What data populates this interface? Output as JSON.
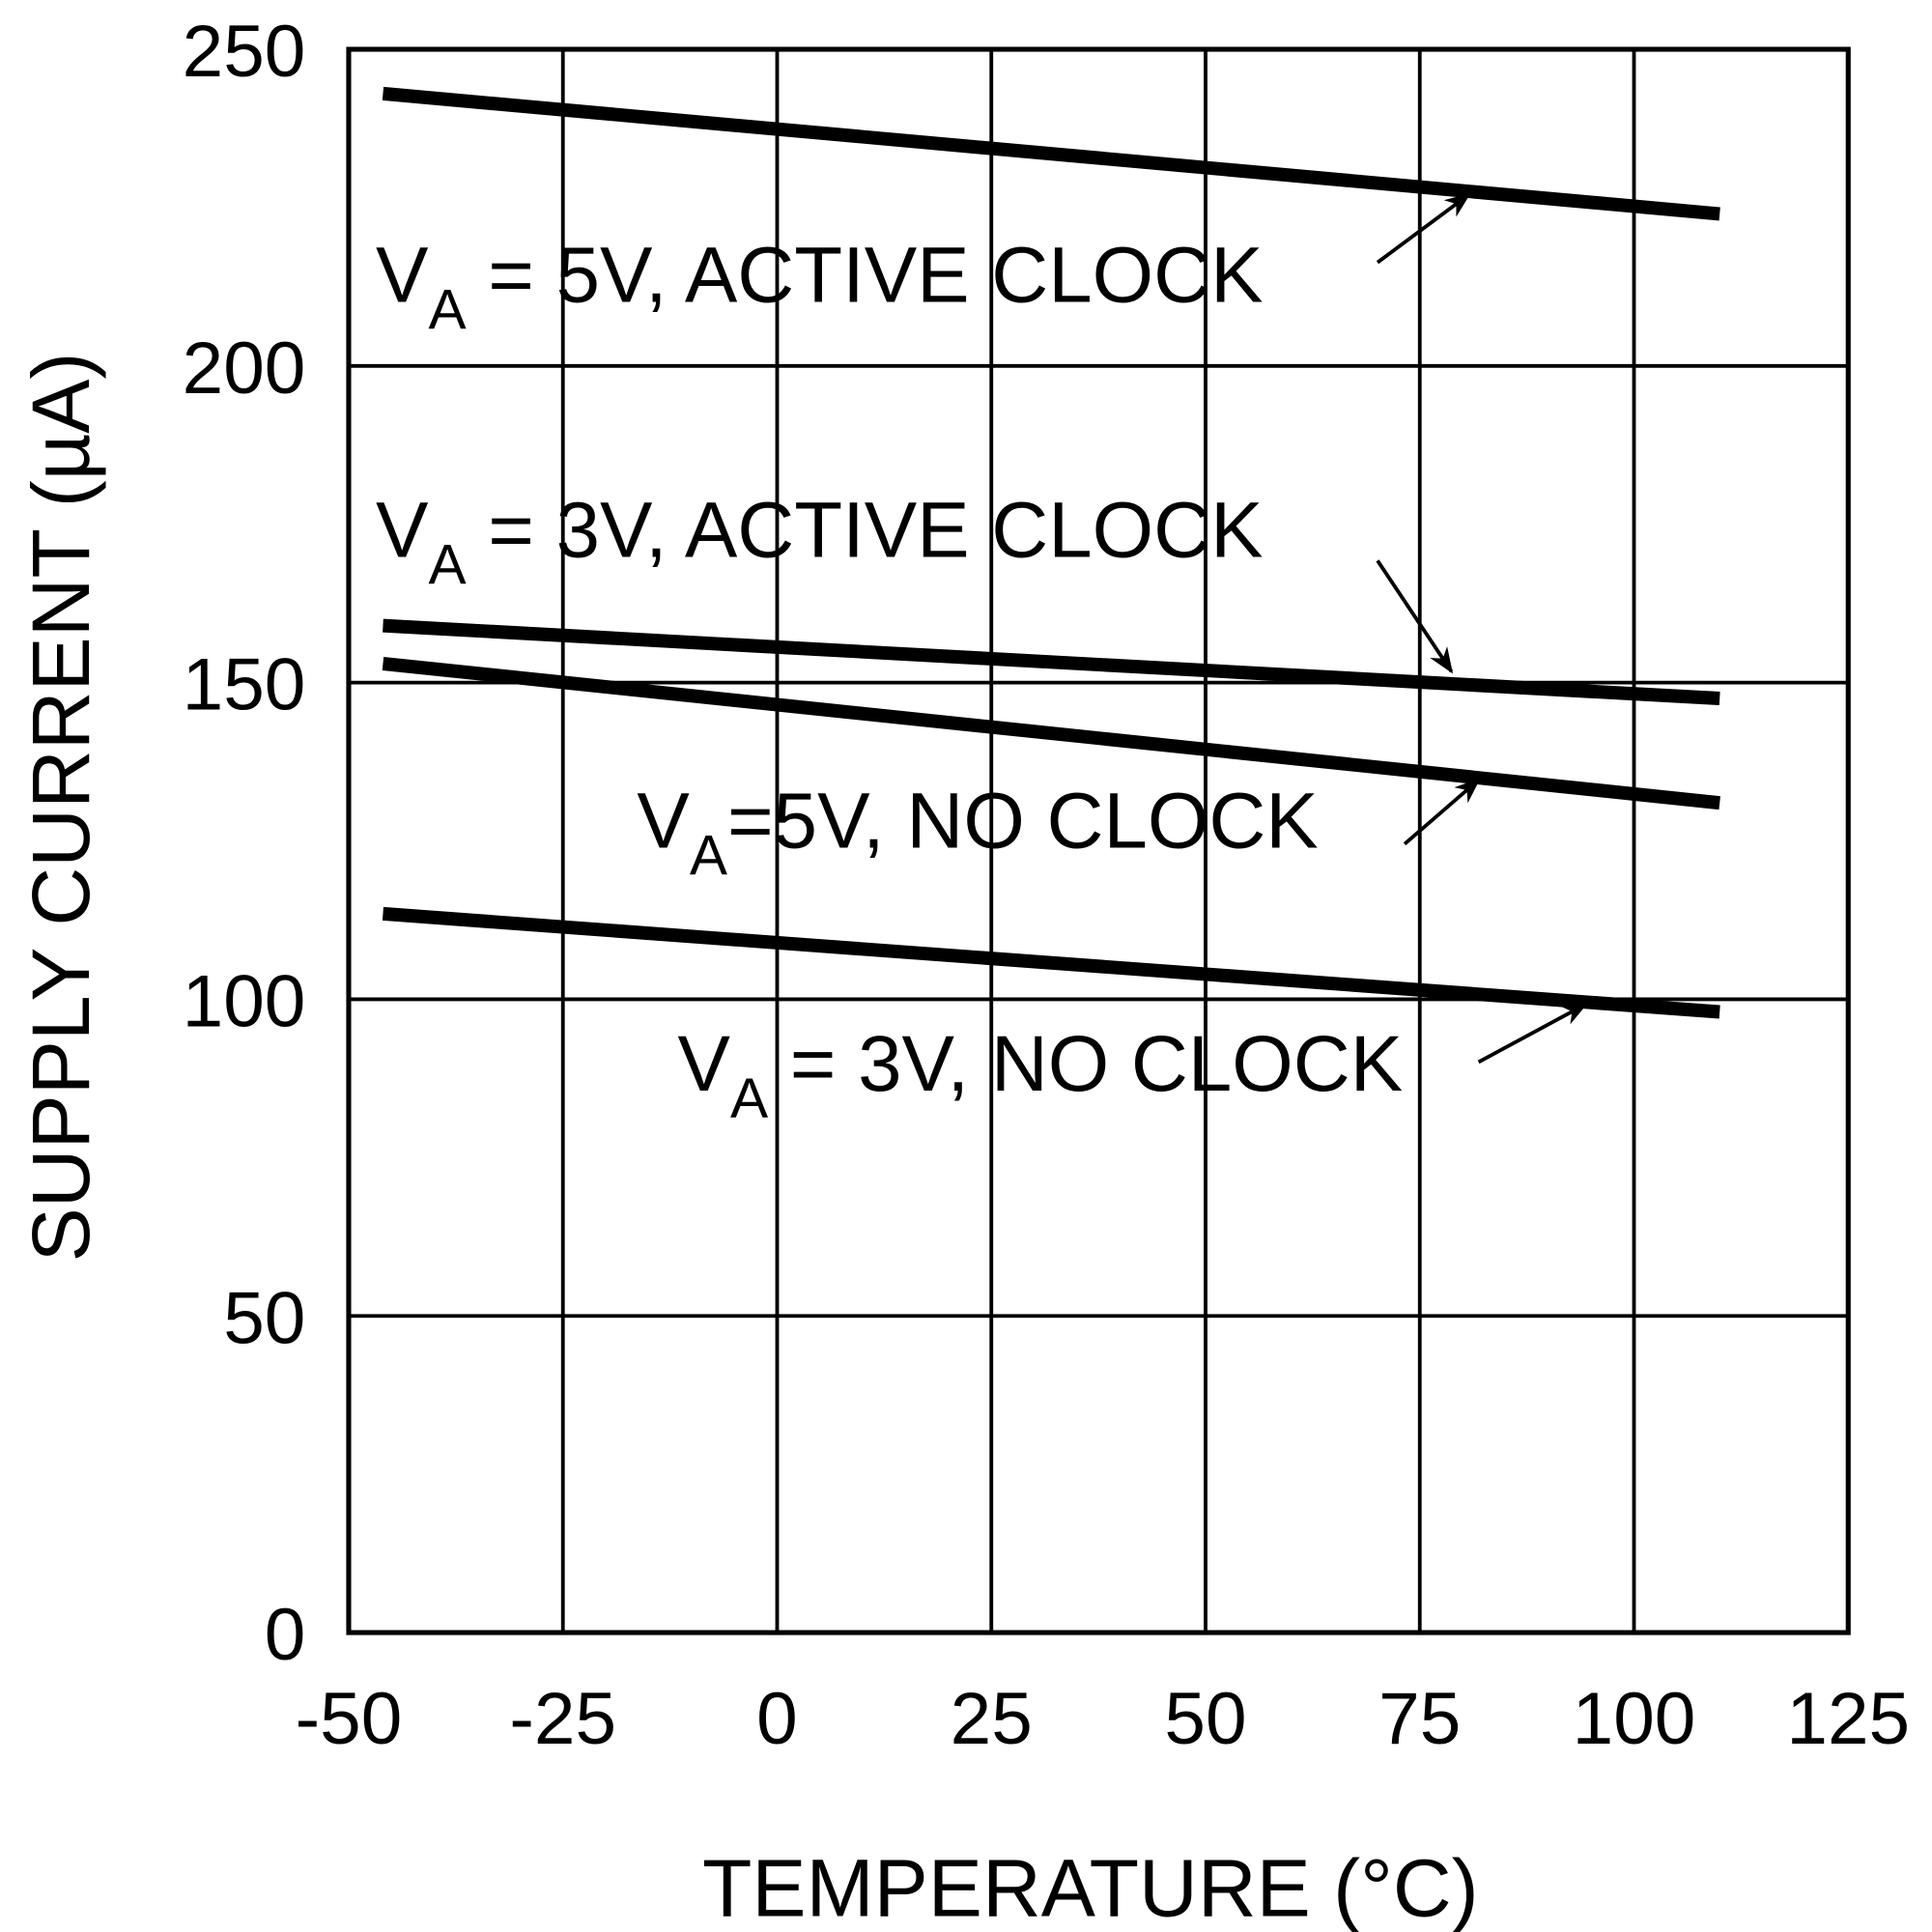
{
  "chart_data": {
    "type": "line",
    "title": "",
    "xlabel": "TEMPERATURE (°C)",
    "xlabel_parts": {
      "pre": "TEMPERATURE (",
      "sup": "o",
      "post": "C)"
    },
    "ylabel": "SUPPLY CURRENT (µA)",
    "xlim": [
      -50,
      125
    ],
    "ylim": [
      0,
      250
    ],
    "xticks": [
      "-50",
      "-25",
      "0",
      "25",
      "50",
      "75",
      "100",
      "125"
    ],
    "yticks": [
      "0",
      "50",
      "100",
      "150",
      "200",
      "250"
    ],
    "grid": true,
    "series": [
      {
        "name": "VA = 5V, ACTIVE CLOCK",
        "label": {
          "v": "V",
          "sub": "A",
          "rest": " = 5V, ACTIVE CLOCK"
        },
        "x": [
          -46,
          110
        ],
        "y": [
          243,
          224
        ]
      },
      {
        "name": "VA = 3V, ACTIVE CLOCK",
        "label": {
          "v": "V",
          "sub": "A",
          "rest": " = 3V, ACTIVE CLOCK"
        },
        "x": [
          -46,
          110
        ],
        "y": [
          159,
          147.5
        ]
      },
      {
        "name": "VA=5V, NO CLOCK",
        "label": {
          "v": "V",
          "sub": "A",
          "rest": "=5V, NO CLOCK"
        },
        "x": [
          -46,
          110
        ],
        "y": [
          153,
          131
        ]
      },
      {
        "name": "VA = 3V, NO CLOCK",
        "label": {
          "v": "V",
          "sub": "A",
          "rest": " = 3V, NO CLOCK"
        },
        "x": [
          -46,
          110
        ],
        "y": [
          113.5,
          98
        ]
      }
    ],
    "line_color": "#000000"
  }
}
